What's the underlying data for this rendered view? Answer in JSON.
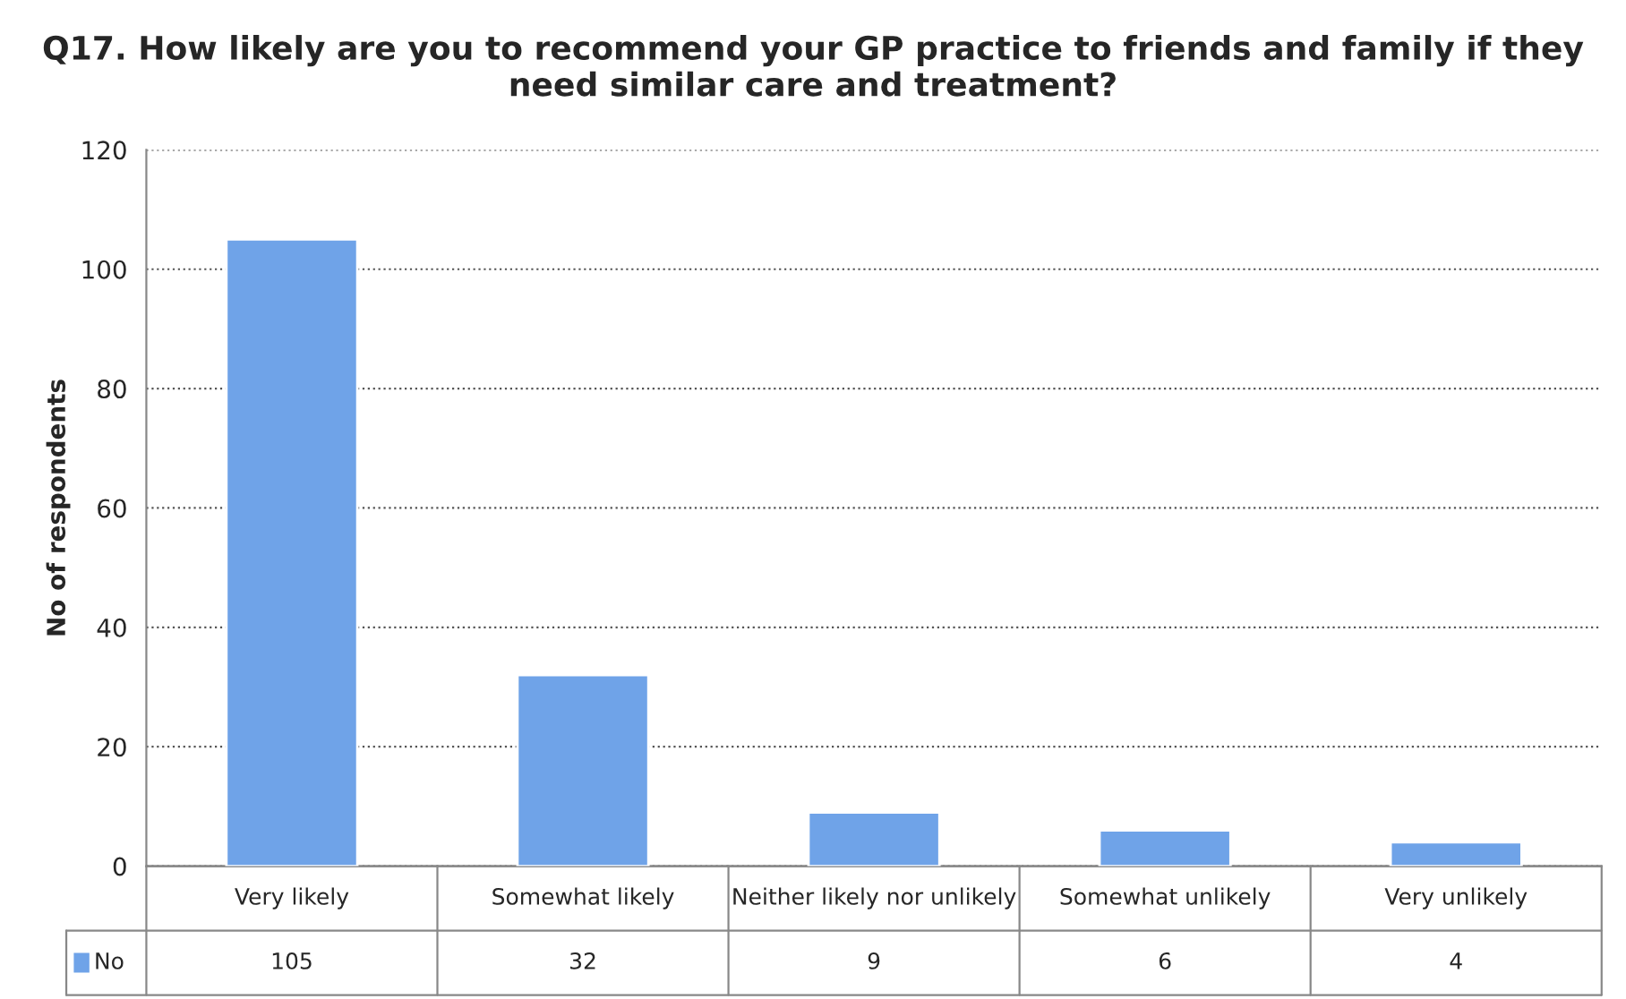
{
  "chart_data": {
    "type": "bar",
    "title": "Q17. How likely are you to recommend your GP practice to friends and family if they need similar care and treatment?",
    "ylabel": "No of respondents",
    "categories": [
      "Very likely",
      "Somewhat likely",
      "Neither likely nor unlikely",
      "Somewhat unlikely",
      "Very unlikely"
    ],
    "series": [
      {
        "name": "No",
        "color": "#6fa3e8",
        "values": [
          105,
          32,
          9,
          6,
          4
        ]
      }
    ],
    "ylim": [
      0,
      120
    ],
    "yticks": [
      0,
      20,
      40,
      60,
      80,
      100,
      120
    ],
    "grid": "y",
    "legend": "bottom",
    "data_labels": true
  }
}
